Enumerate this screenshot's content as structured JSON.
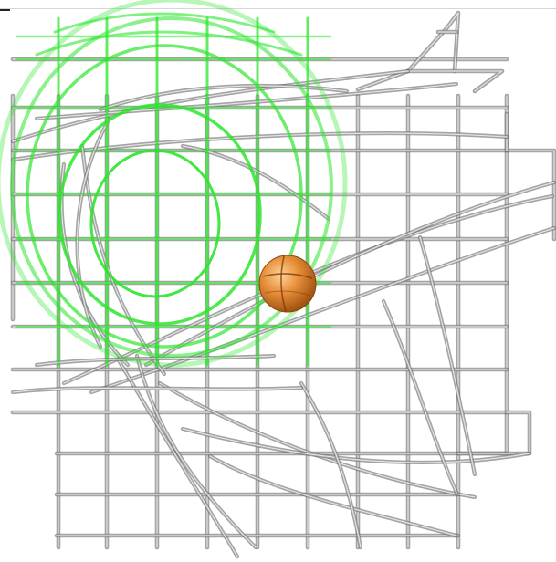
{
  "viewer": {
    "background": "#ffffff",
    "mesh_color": "#8a8a8a",
    "mesh_highlight": "#e6e6e6",
    "mesh_shadow": "#3f3f3f",
    "density_color": "#2ee62e",
    "density_soft": "#9cf09c",
    "sphere_color": "#e8903a",
    "sphere_shadow": "#a85510"
  }
}
